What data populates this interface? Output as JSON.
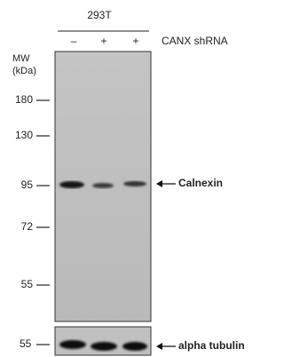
{
  "header": {
    "cell_line": "293T",
    "lanes": [
      "–",
      "+",
      "+"
    ],
    "treatment": "CANX shRNA"
  },
  "mw_label": [
    "MW",
    "(kDa)"
  ],
  "markers": [
    "180",
    "130",
    "95",
    "72",
    "55"
  ],
  "lower_marker": "55",
  "targets": [
    "Calnexin",
    "alpha tubulin"
  ]
}
